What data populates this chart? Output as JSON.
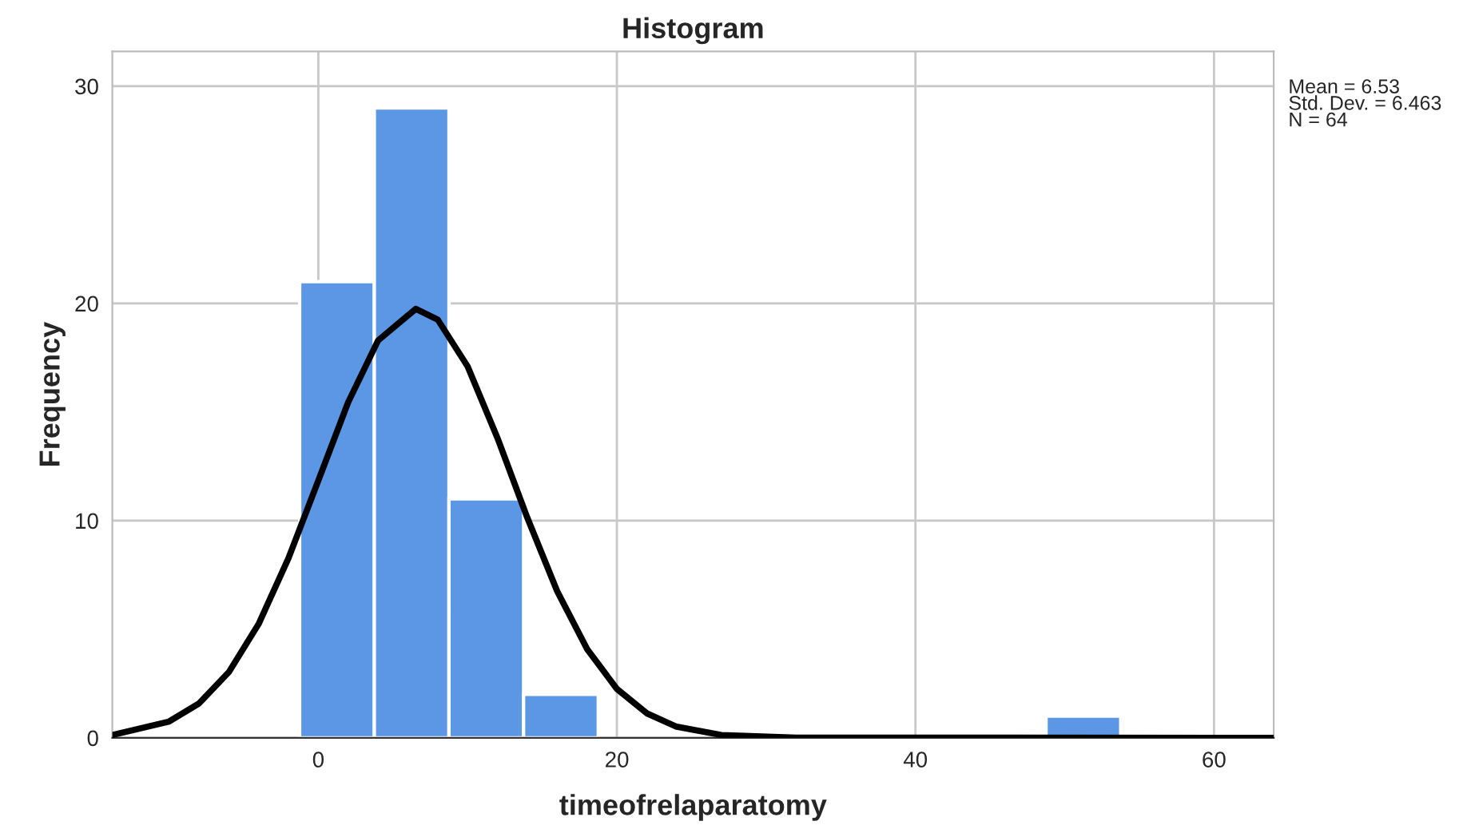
{
  "chart_data": {
    "type": "histogram",
    "title": "Histogram",
    "xlabel": "timeofrelaparatomy",
    "ylabel": "Frequency",
    "bins": [
      -1.25,
      3.75,
      8.75,
      13.75,
      18.75,
      23.75,
      28.75,
      33.75,
      38.75,
      43.75,
      48.75,
      53.75
    ],
    "values": [
      21,
      29,
      11,
      2,
      0,
      0,
      0,
      0,
      0,
      0,
      1
    ],
    "color": "#5b97e5",
    "series": [
      {
        "type": "line",
        "color": "#000000",
        "x": [
          -13.8,
          -10,
          -8,
          -6,
          -4,
          -2,
          0,
          2,
          4,
          6.53,
          8,
          10,
          12,
          14,
          16,
          18,
          20,
          22,
          24,
          27,
          32,
          64
        ],
        "values": [
          0.13,
          0.75,
          1.58,
          3.02,
          5.24,
          8.27,
          11.85,
          15.45,
          18.29,
          19.75,
          19.25,
          17.1,
          13.8,
          10.13,
          6.75,
          4.09,
          2.25,
          1.13,
          0.51,
          0.13,
          0.01,
          0
        ]
      }
    ],
    "xlim": [
      -13.8,
      64
    ],
    "xticks": [
      0,
      20,
      40,
      60
    ],
    "ylim": [
      0,
      31.6
    ],
    "yticks": [
      0,
      10,
      20,
      30
    ],
    "grid": true,
    "annotations": [
      "Mean = 6.53",
      "Std. Dev. = 6.463",
      "N = 64"
    ]
  }
}
